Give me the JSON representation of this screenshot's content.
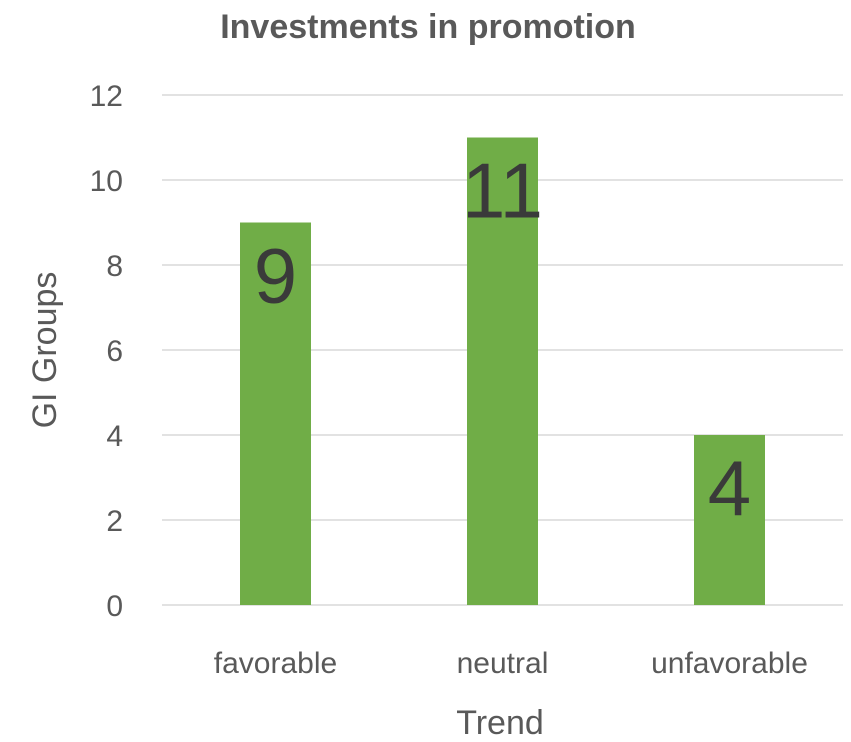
{
  "chart_data": {
    "type": "bar",
    "title": "Investments in promotion",
    "xlabel": "Trend",
    "ylabel": "GI Groups",
    "categories": [
      "favorable",
      "neutral",
      "unfavorable"
    ],
    "values": [
      9,
      11,
      4
    ],
    "data_labels": [
      "9",
      "11",
      "4"
    ],
    "ylim": [
      0,
      12
    ],
    "yticks": [
      0,
      2,
      4,
      6,
      8,
      10,
      12
    ],
    "grid": true,
    "legend": "none",
    "colors": {
      "bar": "#70AD47"
    }
  }
}
